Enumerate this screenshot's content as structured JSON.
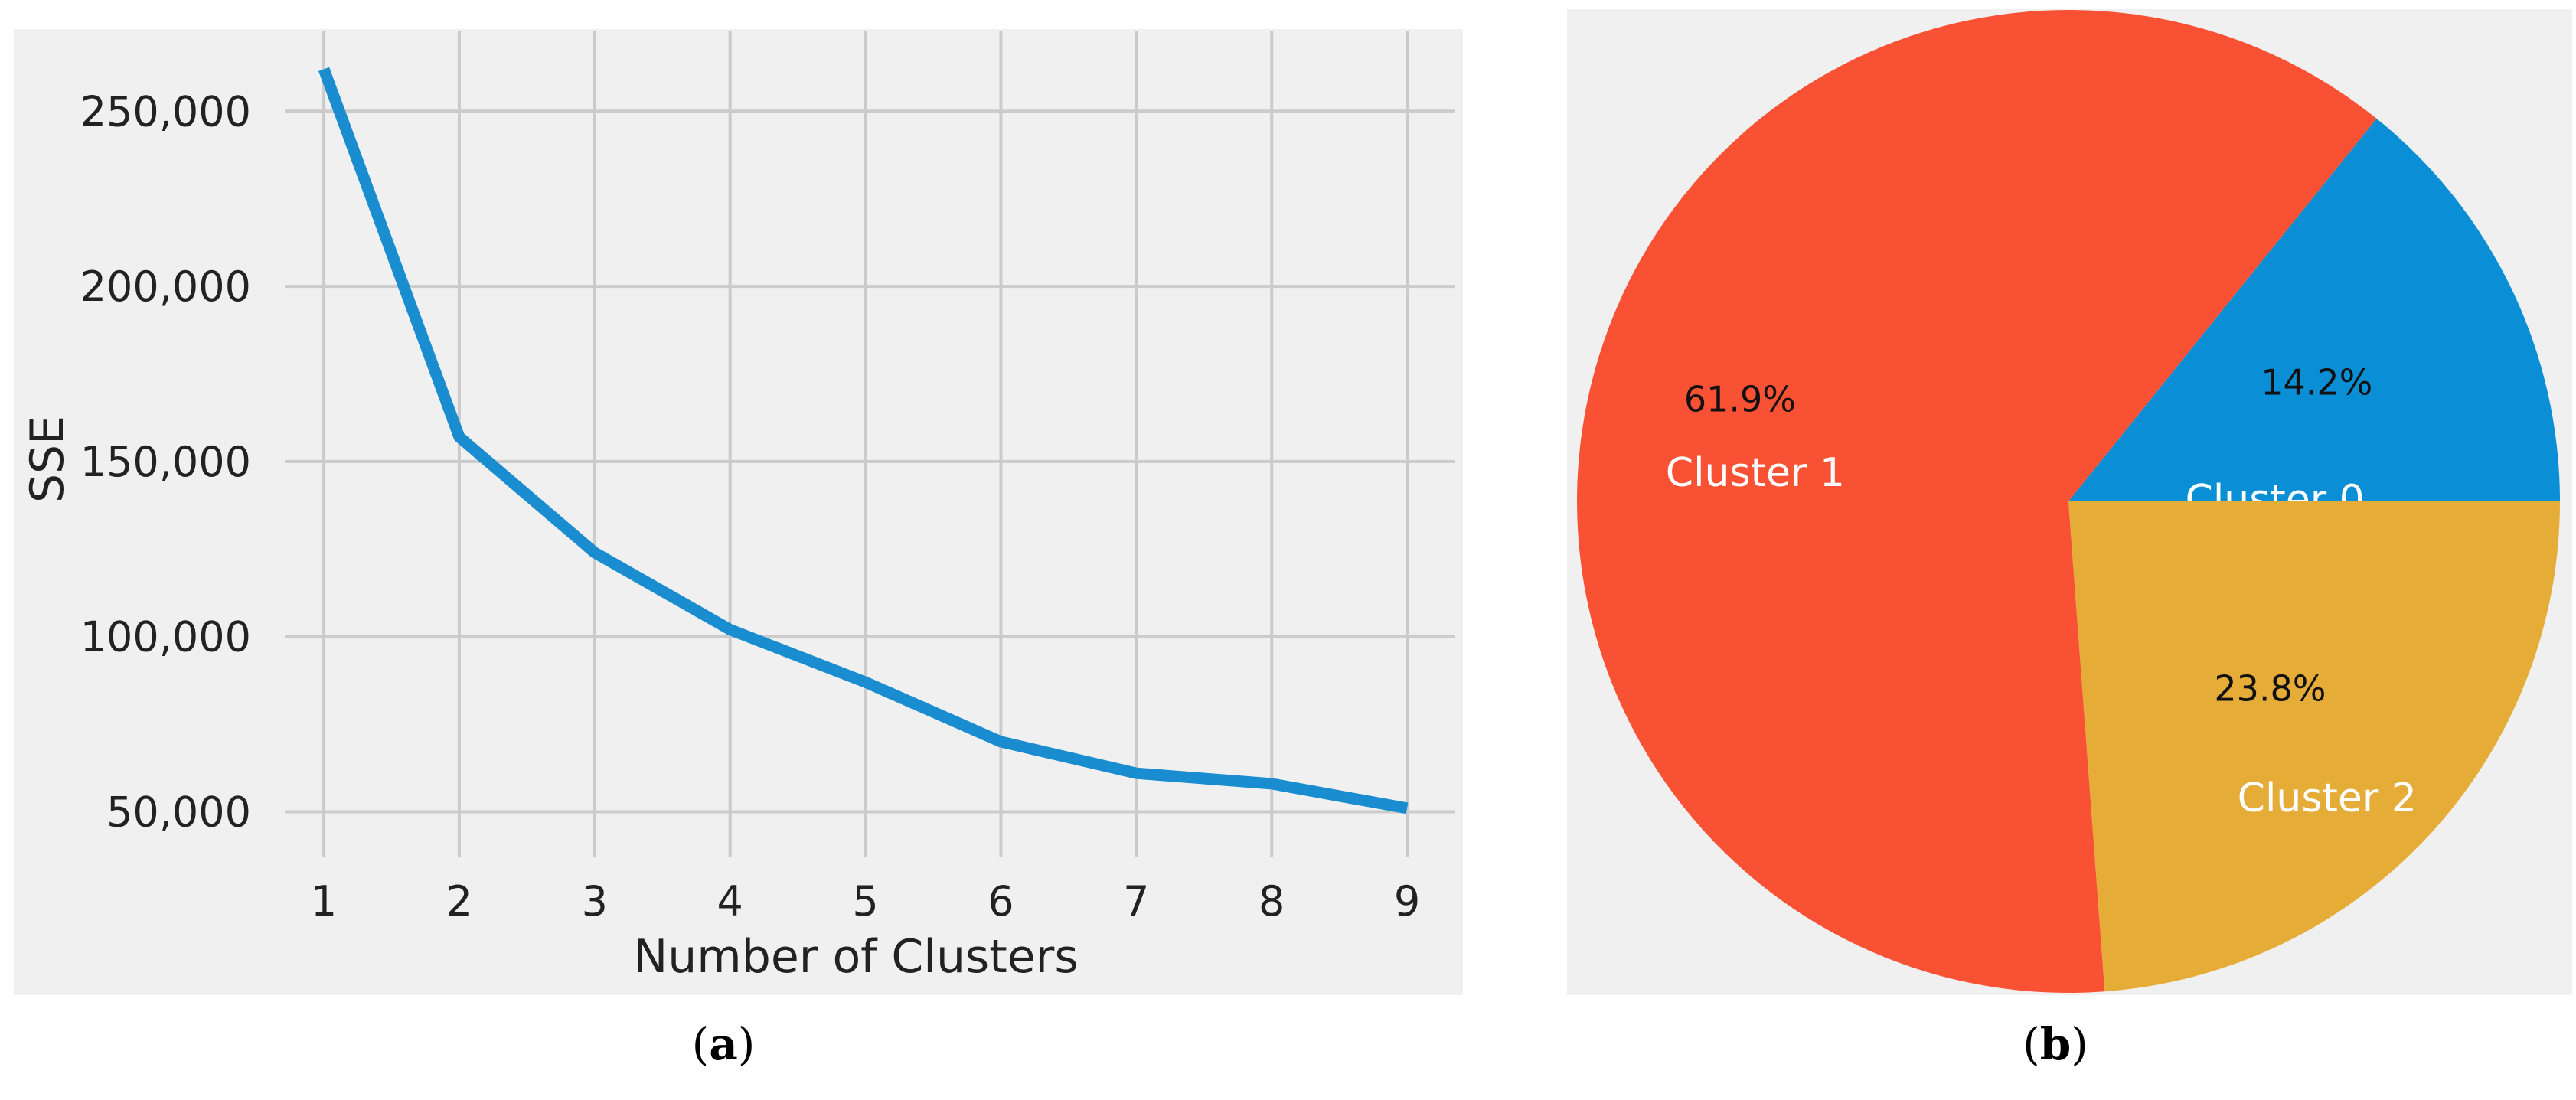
{
  "colors": {
    "panel_bg": "#f0f0f0",
    "grid": "#cbcbcb",
    "line": "#1a8cd0",
    "text": "#222222",
    "slice_colors": [
      "#0a8fd6",
      "#f95134",
      "#e5ac37"
    ]
  },
  "chart_data": [
    {
      "type": "line",
      "panel_label": "a",
      "xlabel": "Number of Clusters",
      "ylabel": "SSE",
      "x": [
        1,
        2,
        3,
        4,
        5,
        6,
        7,
        8,
        9
      ],
      "series": [
        {
          "values": [
            262000,
            157000,
            124000,
            102000,
            87000,
            70000,
            61000,
            58000,
            51000
          ]
        }
      ],
      "xlim": [
        0.7,
        9.35
      ],
      "ylim": [
        37000,
        273000
      ],
      "xticks": [
        "1",
        "2",
        "3",
        "4",
        "5",
        "6",
        "7",
        "8",
        "9"
      ],
      "yticks": [
        {
          "value": 50000,
          "label": "50,000"
        },
        {
          "value": 100000,
          "label": "100,000"
        },
        {
          "value": 150000,
          "label": "150,000"
        },
        {
          "value": 200000,
          "label": "200,000"
        },
        {
          "value": 250000,
          "label": "250,000"
        }
      ],
      "grid": true
    },
    {
      "type": "pie",
      "panel_label": "b",
      "slices": [
        {
          "label": "Cluster 0",
          "value": 14.2,
          "pct_label": "14.2%"
        },
        {
          "label": "Cluster 1",
          "value": 61.9,
          "pct_label": "61.9%"
        },
        {
          "label": "Cluster 2",
          "value": 23.8,
          "pct_label": "23.8%"
        }
      ],
      "start_angle_deg": 0,
      "direction": "counterclockwise"
    }
  ]
}
